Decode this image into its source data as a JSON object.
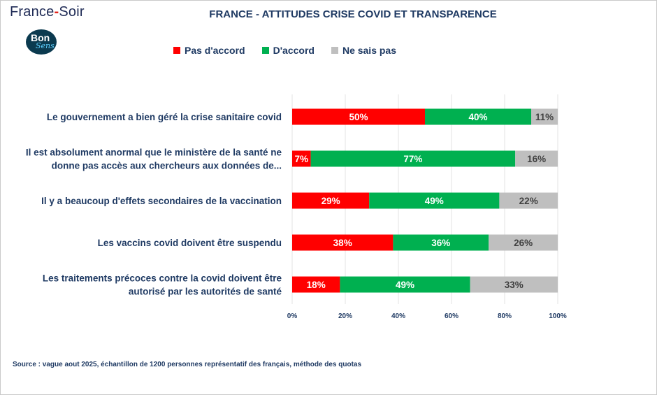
{
  "header": {
    "brand_left": "France",
    "brand_dash": "-",
    "brand_right": "Soir",
    "logo_line1": "Bon",
    "logo_line2": "Sens"
  },
  "chart_data": {
    "type": "bar",
    "orientation": "horizontal",
    "stacked": true,
    "title": "FRANCE - ATTITUDES CRISE COVID ET TRANSPARENCE",
    "categories": [
      [
        "Le gouvernement a bien géré la crise sanitaire covid"
      ],
      [
        "Il est absolument anormal que le ministère de la santé ne",
        "donne pas accès aux chercheurs aux données de..."
      ],
      [
        "Il y a beaucoup d'effets secondaires de la vaccination"
      ],
      [
        "Les vaccins covid doivent être suspendu"
      ],
      [
        "Les traitements précoces contre la covid doivent être",
        "autorisé par les autorités de santé"
      ]
    ],
    "series": [
      {
        "name": "Pas d'accord",
        "color": "#ff0000",
        "text_color": "#ffffff",
        "values": [
          50,
          7,
          29,
          38,
          18
        ]
      },
      {
        "name": "D'accord",
        "color": "#00b050",
        "text_color": "#ffffff",
        "values": [
          40,
          77,
          49,
          36,
          49
        ]
      },
      {
        "name": "Ne sais pas",
        "color": "#bfbfbf",
        "text_color": "#404040",
        "values": [
          11,
          16,
          22,
          26,
          33
        ]
      }
    ],
    "xlim": [
      0,
      100
    ],
    "xticks": [
      "0%",
      "20%",
      "40%",
      "60%",
      "80%",
      "100%"
    ],
    "grid": true,
    "legend_position": "top"
  },
  "footer": {
    "source": "Source : vague aout 2025, échantillon de 1200 personnes représentatif des français, méthode des quotas"
  }
}
